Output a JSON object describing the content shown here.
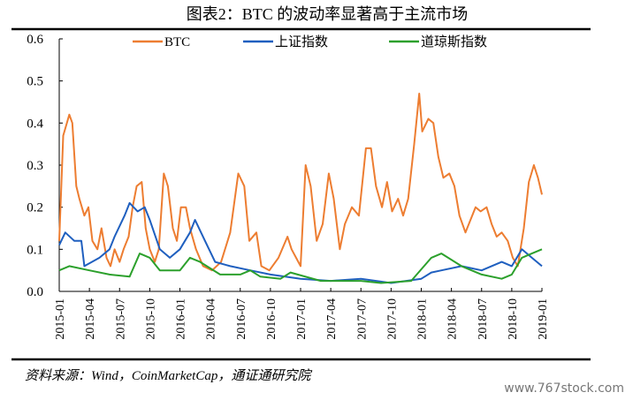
{
  "chart_data": {
    "type": "line",
    "title": "图表2：BTC 的波动率显著高于主流市场",
    "source": "资料来源：Wind，CoinMarketCap，通证通研究院",
    "watermark": "www.767stock.com",
    "xlabel": "",
    "ylabel": "",
    "ylim": [
      0,
      0.6
    ],
    "yticks": [
      "0.0",
      "0.1",
      "0.2",
      "0.3",
      "0.4",
      "0.5",
      "0.6"
    ],
    "xticks": [
      "2015-01",
      "2015-04",
      "2015-07",
      "2015-10",
      "2016-01",
      "2016-04",
      "2016-07",
      "2016-10",
      "2017-01",
      "2017-04",
      "2017-07",
      "2017-10",
      "2018-01",
      "2018-04",
      "2018-07",
      "2018-10",
      "2019-01"
    ],
    "x_unit": "months since 2015-01",
    "xlim": [
      0,
      48
    ],
    "legend_position": "top",
    "series": [
      {
        "name": "BTC",
        "color": "#ED7D31",
        "x": [
          0,
          0.4,
          1,
          1.3,
          1.7,
          2,
          2.5,
          2.9,
          3.3,
          3.8,
          4.2,
          4.7,
          5.1,
          5.5,
          6,
          6.4,
          6.9,
          7.3,
          7.7,
          8.2,
          8.6,
          9,
          9.5,
          9.9,
          10.4,
          10.8,
          11.3,
          11.7,
          12.1,
          12.6,
          13,
          13.6,
          14.3,
          15.2,
          16.1,
          17,
          17.8,
          18.4,
          18.9,
          19.6,
          20.1,
          20.9,
          21.8,
          22.7,
          23.1,
          24,
          24.5,
          25,
          25.6,
          26.2,
          26.8,
          27.3,
          27.9,
          28.4,
          29.1,
          29.8,
          30.5,
          31,
          31.5,
          32.1,
          32.6,
          33.1,
          33.7,
          34.2,
          34.7,
          35.3,
          35.8,
          36.1,
          36.7,
          37.2,
          37.7,
          38.2,
          38.8,
          39.3,
          39.8,
          40.4,
          40.9,
          41.4,
          41.9,
          42.5,
          43,
          43.5,
          44,
          44.6,
          45.1,
          45.6,
          46.2,
          46.7,
          47.2,
          47.6,
          48
        ],
        "values": [
          0.12,
          0.37,
          0.42,
          0.4,
          0.25,
          0.22,
          0.18,
          0.2,
          0.12,
          0.1,
          0.15,
          0.08,
          0.06,
          0.1,
          0.07,
          0.1,
          0.13,
          0.2,
          0.25,
          0.26,
          0.15,
          0.1,
          0.07,
          0.1,
          0.28,
          0.25,
          0.15,
          0.12,
          0.2,
          0.2,
          0.15,
          0.1,
          0.06,
          0.05,
          0.07,
          0.14,
          0.28,
          0.25,
          0.12,
          0.14,
          0.06,
          0.05,
          0.08,
          0.13,
          0.1,
          0.06,
          0.3,
          0.25,
          0.12,
          0.16,
          0.28,
          0.22,
          0.1,
          0.16,
          0.2,
          0.18,
          0.34,
          0.34,
          0.25,
          0.2,
          0.26,
          0.19,
          0.22,
          0.18,
          0.22,
          0.35,
          0.47,
          0.38,
          0.41,
          0.4,
          0.32,
          0.27,
          0.28,
          0.25,
          0.18,
          0.14,
          0.17,
          0.2,
          0.19,
          0.2,
          0.16,
          0.13,
          0.14,
          0.12,
          0.08,
          0.06,
          0.15,
          0.26,
          0.3,
          0.27,
          0.23
        ]
      },
      {
        "name": "上证指数",
        "color": "#1F5FBF",
        "x": [
          0,
          0.6,
          1.5,
          2.2,
          2.5,
          4,
          5,
          5.5,
          6.5,
          7,
          7.8,
          8.5,
          9,
          10,
          11,
          12,
          13,
          13.5,
          14.5,
          15.5,
          17,
          19,
          21,
          24,
          27,
          30,
          33,
          36,
          37,
          38,
          40,
          42,
          44,
          45,
          46,
          47,
          48
        ],
        "values": [
          0.11,
          0.14,
          0.12,
          0.12,
          0.06,
          0.08,
          0.1,
          0.13,
          0.18,
          0.21,
          0.19,
          0.2,
          0.17,
          0.1,
          0.08,
          0.1,
          0.14,
          0.17,
          0.12,
          0.07,
          0.06,
          0.05,
          0.04,
          0.03,
          0.025,
          0.03,
          0.02,
          0.03,
          0.045,
          0.05,
          0.06,
          0.05,
          0.07,
          0.06,
          0.1,
          0.08,
          0.06
        ]
      },
      {
        "name": "道琼斯指数",
        "color": "#2CA02C",
        "x": [
          0,
          1,
          3,
          5,
          7,
          8,
          9,
          10,
          12,
          13,
          14,
          16,
          18,
          19,
          20,
          22,
          23,
          26,
          30,
          32,
          35,
          37,
          38,
          40,
          42,
          44,
          45,
          46,
          47,
          48
        ],
        "values": [
          0.05,
          0.06,
          0.05,
          0.04,
          0.035,
          0.09,
          0.08,
          0.05,
          0.05,
          0.08,
          0.07,
          0.04,
          0.04,
          0.05,
          0.035,
          0.03,
          0.045,
          0.025,
          0.025,
          0.02,
          0.025,
          0.08,
          0.09,
          0.06,
          0.04,
          0.03,
          0.04,
          0.08,
          0.09,
          0.1
        ]
      }
    ]
  }
}
